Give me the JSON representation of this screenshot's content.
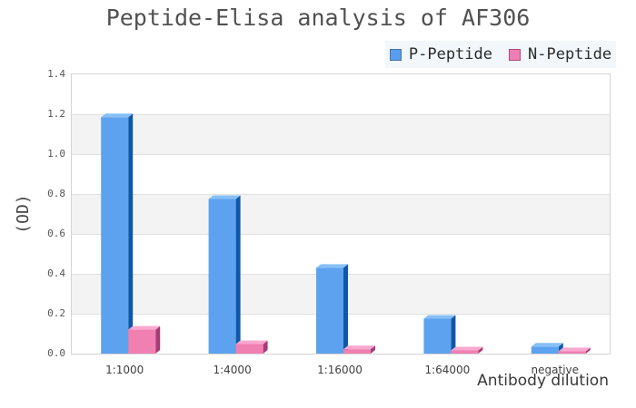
{
  "title": "Peptide-Elisa analysis of AF306",
  "legend": {
    "background": "#f1f7fa",
    "items": [
      {
        "label": "P-Peptide",
        "fill": "#5b9df0",
        "border": "#4a74a4"
      },
      {
        "label": "N-Peptide",
        "fill": "#ee7fb4",
        "border": "#b34b80"
      }
    ]
  },
  "chart_data": {
    "type": "bar",
    "title": "Peptide-Elisa analysis of AF306",
    "xlabel": "Antibody dilution",
    "ylabel": "(OD)",
    "categories": [
      "1:1000",
      "1:4000",
      "1:16000",
      "1:64000",
      "negative"
    ],
    "series": [
      {
        "name": "P-Peptide",
        "values": [
          1.185,
          0.775,
          0.43,
          0.175,
          0.035
        ],
        "face": "#5da2ef",
        "top": "#86c0f5",
        "side": "#0f57a8"
      },
      {
        "name": "N-Peptide",
        "values": [
          0.12,
          0.048,
          0.022,
          0.016,
          0.012
        ],
        "face": "#f07fb2",
        "top": "#f9a8cf",
        "side": "#a63c75"
      }
    ],
    "ylim": [
      0,
      1.4
    ],
    "ytick_step": 0.2,
    "ytick_labels": [
      "0.0",
      "0.2",
      "0.4",
      "0.6",
      "0.8",
      "1.0",
      "1.2",
      "1.4"
    ],
    "grid": true,
    "legend_position": "top-right",
    "style": {
      "band_alt_color": "#f3f3f3",
      "band_color": "#ffffff",
      "gridline_color": "#e0e0e0",
      "border_color": "#d4d4d4",
      "bar_3d_depth_x": 5,
      "bar_3d_depth_y": 4
    }
  }
}
